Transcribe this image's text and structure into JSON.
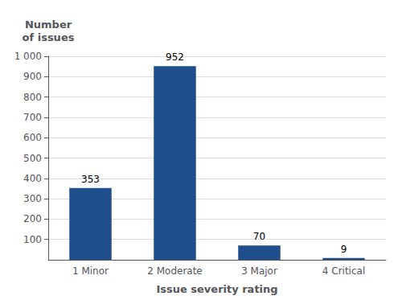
{
  "chart_data": {
    "type": "bar",
    "categories": [
      "1 Minor",
      "2 Moderate",
      "3 Major",
      "4 Critical"
    ],
    "values": [
      353,
      952,
      70,
      9
    ],
    "color": "#1F4E8C",
    "xlabel": "Issue severity rating",
    "ylabel": "Number\nof issues",
    "ylim": [
      0,
      1000
    ],
    "yticks": [
      100,
      200,
      300,
      400,
      500,
      600,
      700,
      800,
      900,
      {
        "value": 1000,
        "label": "1 000"
      }
    ],
    "grid": true,
    "data_labels": true
  }
}
